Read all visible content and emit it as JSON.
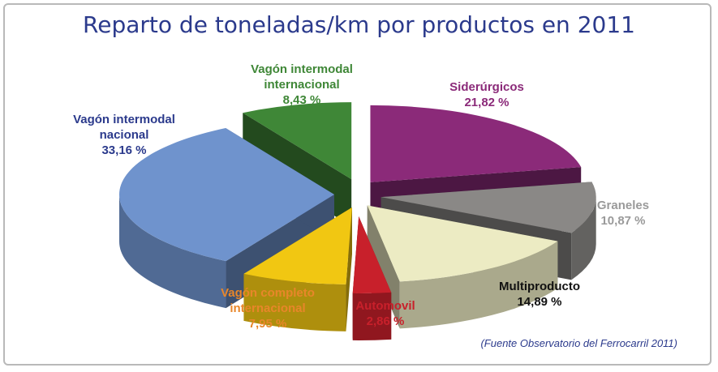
{
  "chart_data": {
    "type": "pie",
    "title": "Reparto de toneladas/km por productos en 2011",
    "source": "(Fuente Observatorio del Ferrocarril 2011)",
    "slices": [
      {
        "label": "Siderúrgicos",
        "pct_text": "21,82 %",
        "value": 21.82,
        "color": "#8b2a79"
      },
      {
        "label": "Graneles",
        "pct_text": "10,87 %",
        "value": 10.87,
        "color": "#8a8886"
      },
      {
        "label": "Multiproducto",
        "pct_text": "14,89 %",
        "value": 14.89,
        "color": "#ecebc3"
      },
      {
        "label": "Automovil",
        "pct_text": "2,86 %",
        "value": 2.86,
        "color": "#c8202b"
      },
      {
        "label": "Vagón completo internacional",
        "pct_text": "7,95 %",
        "value": 7.95,
        "color": "#f1c712"
      },
      {
        "label": "Vagón intermodal nacional",
        "pct_text": "33,16 %",
        "value": 33.16,
        "color": "#6f93cd"
      },
      {
        "label": "Vagón intermodal internacional",
        "pct_text": "8,43 %",
        "value": 8.43,
        "color": "#3f8737"
      }
    ],
    "label_colors": {
      "Siderúrgicos": "#8b2a79",
      "Graneles": "#9a9a9a",
      "Multiproducto": "#111111",
      "Automovil": "#c8202b",
      "Vagón completo internacional": "#e8862a",
      "Vagón intermodal nacional": "#2b3a8c",
      "Vagón intermodal internacional": "#3f8737"
    }
  }
}
